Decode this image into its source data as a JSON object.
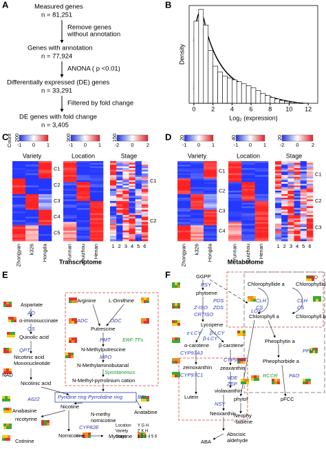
{
  "panel_labels": [
    "A",
    "B",
    "C",
    "D",
    "E",
    "F"
  ],
  "panel_a": {
    "items": [
      "Measured genes",
      "n = 81,251",
      "Remove genes",
      "without annotation",
      "Genes with annotation",
      "n = 77,924",
      "ANONA ( p <0.01)",
      "Differentially expressed (DE) genes",
      "n = 33,291",
      "Filtered by fold change",
      "DE genes with fold change",
      "n = 3,405"
    ]
  },
  "chart_data": {
    "type": "histogram",
    "xlabel": "Log₂ (expression)",
    "ylabel": "Density",
    "bins": [
      0,
      0.5,
      1,
      1.5,
      2,
      2.5,
      3,
      3.5,
      4,
      4.5,
      5,
      5.5,
      6,
      6.5,
      7,
      7.5,
      8,
      8.5,
      9,
      9.5,
      10,
      10.5,
      11,
      11.5,
      12
    ],
    "values": [
      0.42,
      0.48,
      0.4,
      0.27,
      0.19,
      0.16,
      0.14,
      0.13,
      0.12,
      0.11,
      0.1,
      0.09,
      0.08,
      0.065,
      0.05,
      0.04,
      0.03,
      0.022,
      0.015,
      0.01,
      0.006,
      0.004,
      0.002,
      0.001
    ],
    "xlim": [
      -0.5,
      13
    ],
    "ylim": [
      0,
      0.5
    ],
    "xticks": [
      0,
      2,
      4,
      6,
      8,
      10,
      12
    ],
    "color": "#ffffff",
    "edge": "#000000"
  },
  "panel_c": {
    "key_title": "Count",
    "keys": [
      {
        "max": 200,
        "ticks": [
          -1,
          0,
          1
        ]
      },
      {
        "max": 300,
        "ticks": [
          -1,
          0,
          1
        ]
      },
      {
        "max": 150,
        "ticks": [
          -2,
          0,
          2
        ]
      }
    ],
    "groups": [
      "Variety",
      "Location",
      "Stage"
    ],
    "variety_clusters": [
      "C1",
      "C2",
      "C3",
      "C4",
      "C5"
    ],
    "stage_clusters": [
      "C1",
      "C2"
    ],
    "columns": [
      "Zhongyan",
      "k326",
      "Hongda",
      "Yunnan",
      "Guizhou",
      "Henan"
    ],
    "stages": [
      1,
      2,
      3,
      4,
      5,
      6
    ],
    "footer": "Transcriptome"
  },
  "panel_d": {
    "keys": [
      {
        "max": 20,
        "ticks": [
          -1,
          0,
          1
        ]
      },
      {
        "max": 40,
        "ticks": [
          -1,
          0,
          1
        ]
      },
      {
        "max": 20,
        "ticks": [
          -2,
          0,
          2
        ]
      }
    ],
    "groups": [
      "Variety",
      "Location",
      "Stage"
    ],
    "variety_clusters": [
      "C1",
      "C2",
      "C3",
      "C4"
    ],
    "stage_clusters": [
      "C1",
      "C2",
      "C3"
    ],
    "columns": [
      "Zhongyan",
      "k326",
      "Hongda",
      "Yunnan",
      "Guizhou",
      "Henan"
    ],
    "stages": [
      1,
      2,
      3,
      4,
      5,
      6
    ],
    "footer": "Metabolome"
  },
  "panel_e": {
    "labels": [
      "Aspartate",
      "AO",
      "α-iminosuccinate",
      "QS",
      "Quinolic acid",
      "QPT",
      "Nicotinic acid",
      "Mononucleotide",
      "NAD",
      "Nicotinic acid",
      "Arginine",
      "L-Ornithine",
      "ADC",
      "ODC",
      "Putrescine",
      "PMT",
      "ERF-TFs",
      "N-Methylputrescine",
      "MPO",
      "N-Methylaminobutanal",
      "Spontaneous",
      "N-Methyl-pyrrolinium cation",
      "A622",
      "Pyridine ring",
      "Pyrrolidine ring",
      "BBL",
      "Anabasine",
      "Anatabine",
      "Nicotine",
      "nicotyrine",
      "N-methy",
      "nornicotine",
      "CYP82E",
      "Nornicotine",
      "Myosmine",
      "Cotinine"
    ],
    "legend": [
      "Location",
      "Variety",
      "Stage",
      "Y G H",
      "Z K H",
      "1 2 3 4 5 6"
    ]
  },
  "panel_f": {
    "labels": [
      "GGPP",
      "PSY",
      "phytoene",
      "PDS",
      "Z-ISO",
      "ZDS",
      "CRTISO",
      "Lycopene",
      "ε-LCY",
      "β-LCY",
      "β-LCY",
      "α-carotene",
      "β-carotene",
      "CYP97A3",
      "CYP97A3",
      "zeinoxanthin",
      "zeaxanthin",
      "CYP97C1",
      "VDE",
      "ZEP",
      "violaxanthin",
      "Lutein",
      "NSY",
      "Neoxanthin",
      "ABA",
      "Abscisic",
      "aldehyde",
      "LOX",
      "CAO",
      "Chlorophyllide a",
      "Chlorophyllide b",
      "Chlorophyll a",
      "Chlorophyll b",
      "CLH",
      "CS",
      "CLH",
      "CS",
      "Pheophytin a",
      "PPH",
      "Pheophorbide a",
      "RCCR",
      "PAO",
      "phytol",
      "pFCC",
      "Neophy",
      "-tadiene"
    ]
  }
}
